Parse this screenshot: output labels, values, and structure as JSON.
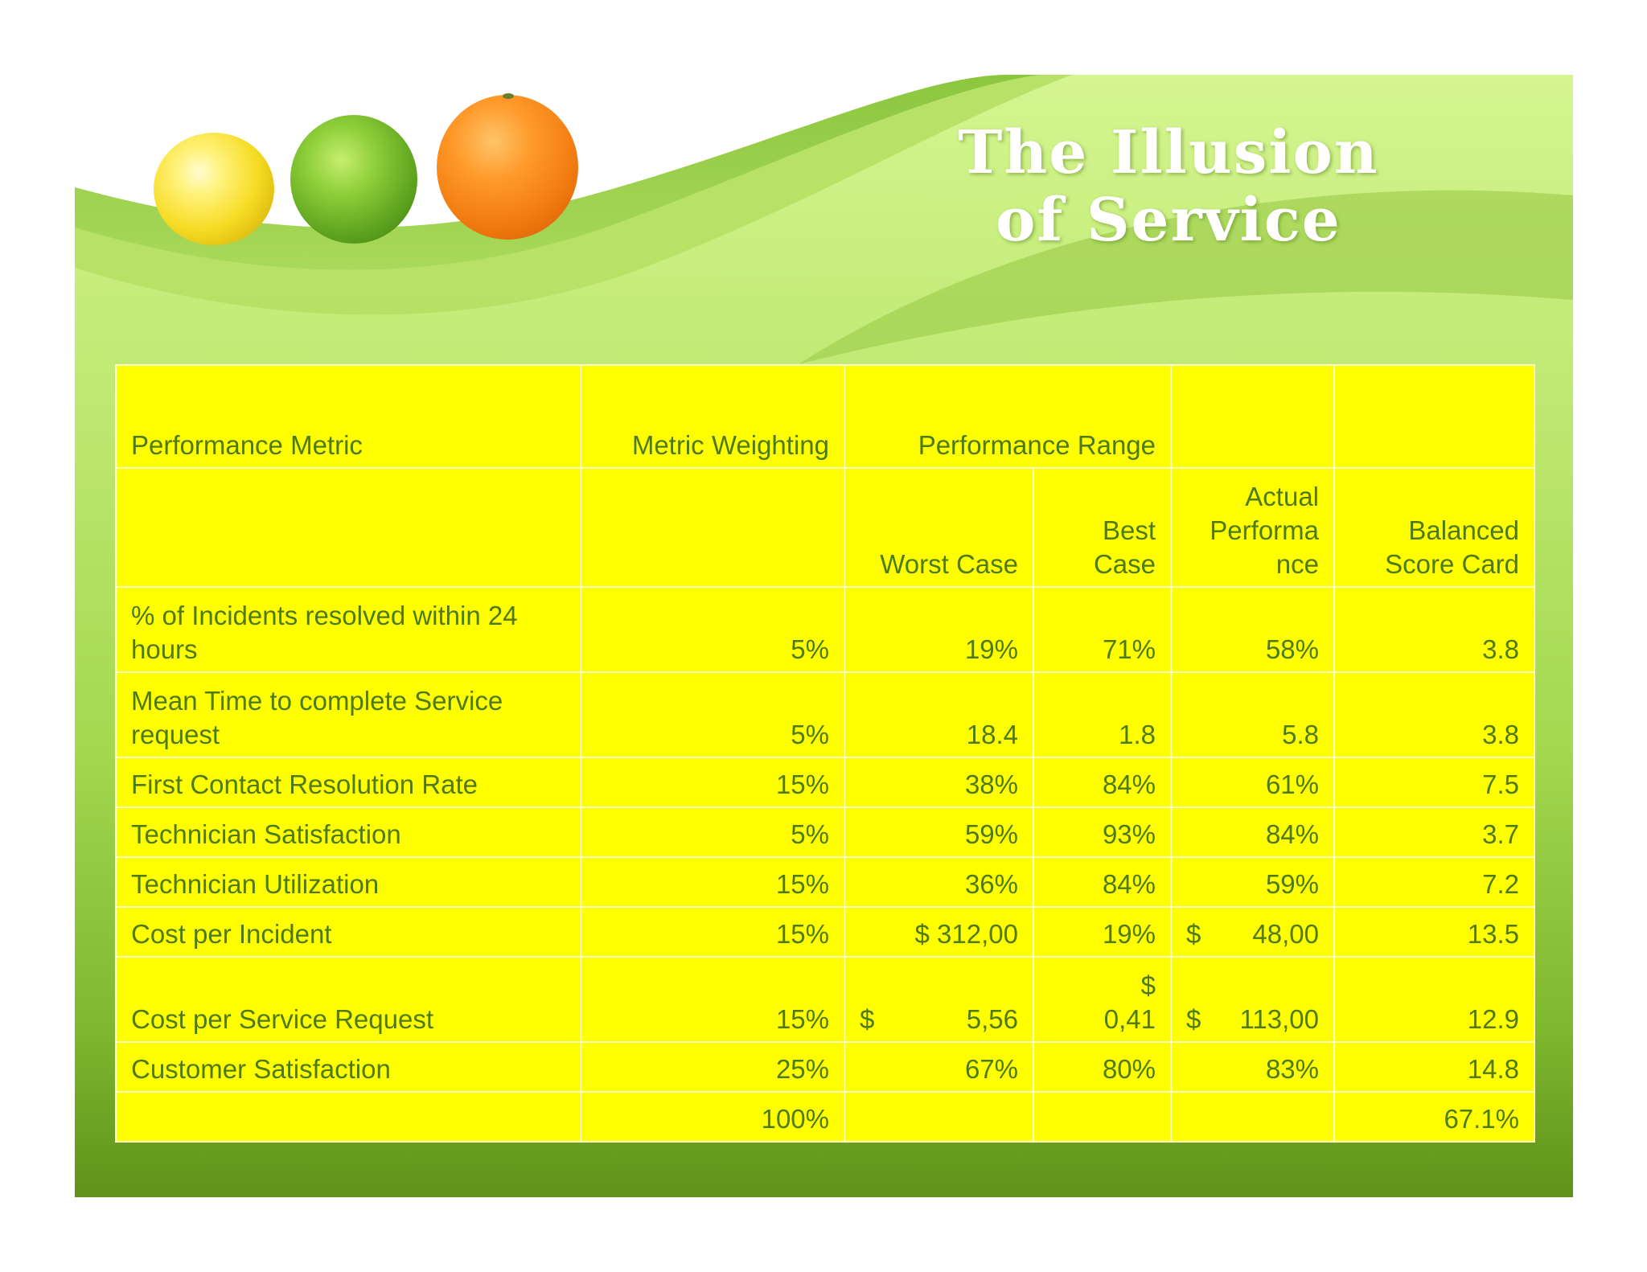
{
  "title_lines": [
    "The Illusion",
    "of Service"
  ],
  "headers": {
    "performance_metric": "Performance Metric",
    "metric_weighting": "Metric Weighting",
    "performance_range": "Performance Range",
    "worst_case": "Worst Case",
    "best_case": "Best Case",
    "actual_performance_lines": [
      "Actual",
      "Performa",
      "nce"
    ],
    "balanced_score_card_lines": [
      "Balanced",
      "Score Card"
    ]
  },
  "rows": [
    {
      "metric_lines": [
        "% of Incidents resolved within 24",
        "hours"
      ],
      "weighting": "5%",
      "worst": "19%",
      "best": "71%",
      "actual": "58%",
      "score": "3.8"
    },
    {
      "metric_lines": [
        "Mean Time to complete Service",
        "request"
      ],
      "weighting": "5%",
      "worst": "18.4",
      "best": "1.8",
      "actual": "5.8",
      "score": "3.8"
    },
    {
      "metric": "First Contact Resolution Rate",
      "weighting": "15%",
      "worst": "38%",
      "best": "84%",
      "actual": "61%",
      "score": "7.5"
    },
    {
      "metric": "Technician Satisfaction",
      "weighting": "5%",
      "worst": "59%",
      "best": "93%",
      "actual": "84%",
      "score": "3.7"
    },
    {
      "metric": "Technician Utilization",
      "weighting": "15%",
      "worst": "36%",
      "best": "84%",
      "actual": "59%",
      "score": "7.2"
    },
    {
      "metric": "Cost per Incident",
      "weighting": "15%",
      "worst": "$ 312,00",
      "best": "19%",
      "actual_currency": "$",
      "actual_amount": "48,00",
      "score": "13.5"
    },
    {
      "metric": "Cost per Service Request",
      "weighting": "15%",
      "worst_currency": "$",
      "worst_amount": "5,56",
      "best_lines": [
        "$",
        "0,41"
      ],
      "actual_currency": "$",
      "actual_amount": "113,00",
      "score": "12.9"
    },
    {
      "metric": "Customer Satisfaction",
      "weighting": "25%",
      "worst": "67%",
      "best": "80%",
      "actual": "83%",
      "score": "14.8"
    }
  ],
  "totals": {
    "weighting": "100%",
    "score": "67.1%"
  },
  "colors": {
    "table_fill": "#ffff00",
    "text": "#4e7a12",
    "title": "#ffffff",
    "background_green": "#a3d84f"
  }
}
